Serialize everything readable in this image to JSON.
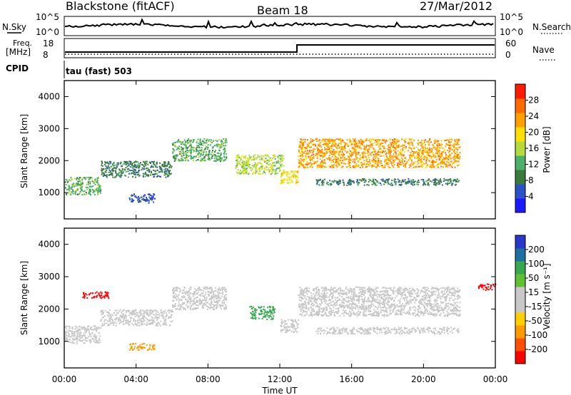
{
  "header": {
    "station": "Blackstone (fitACF)",
    "beam": "Beam 18",
    "date": "27/Mar/2012"
  },
  "strip_labels": {
    "nsky": "N.Sky",
    "nsky_ticks": [
      "10^5",
      "10^0"
    ],
    "nsearch": "N.Search",
    "nsearch_ticks": [
      "10^5",
      "10^0"
    ],
    "freq": "Freq.",
    "freq_unit": "[MHz]",
    "freq_ticks": [
      "18",
      "8"
    ],
    "nave": "Nave",
    "nave_ticks": [
      "60",
      "0"
    ],
    "cpid": "CPID",
    "cpid_value": "tau (fast) 503"
  },
  "colors": {
    "power": [
      "#1a1aff",
      "#2a52c8",
      "#3a7a3a",
      "#4caf6a",
      "#b4dc3c",
      "#ffe000",
      "#ffa000",
      "#ff6a00",
      "#ff1a00"
    ],
    "velocity": [
      "#ff0000",
      "#ff5000",
      "#ff9b00",
      "#ffd000",
      "#c8c8c8",
      "#c8c8c8",
      "#60c030",
      "#38a850",
      "#1e70a0",
      "#2838c8"
    ]
  },
  "chart_data": [
    {
      "type": "heatmap",
      "name": "power",
      "xlabel": "",
      "ylabel": "Slant Range [km]",
      "ylim": [
        180,
        4500
      ],
      "yticks": [
        "1000",
        "2000",
        "3000",
        "4000"
      ],
      "colorbar": {
        "label": "Power [dB]",
        "ticks": [
          "4",
          "8",
          "12",
          "16",
          "20",
          "24",
          "28"
        ]
      },
      "bands": [
        {
          "t0": 0.0,
          "t1": 2.0,
          "r0": 950,
          "r1": 1500,
          "level": 3
        },
        {
          "t0": 2.0,
          "t1": 6.0,
          "r0": 1500,
          "r1": 2000,
          "level": 2
        },
        {
          "t0": 3.6,
          "t1": 5.0,
          "r0": 700,
          "r1": 980,
          "level": 1
        },
        {
          "t0": 6.0,
          "t1": 9.0,
          "r0": 2000,
          "r1": 2700,
          "level": 3
        },
        {
          "t0": 9.5,
          "t1": 12.2,
          "r0": 1600,
          "r1": 2200,
          "level": 4
        },
        {
          "t0": 12.0,
          "t1": 13.0,
          "r0": 1300,
          "r1": 1700,
          "level": 5
        },
        {
          "t0": 13.0,
          "t1": 22.0,
          "r0": 1800,
          "r1": 2700,
          "level": 6
        },
        {
          "t0": 14.0,
          "t1": 22.0,
          "r0": 1250,
          "r1": 1450,
          "level": 2
        }
      ]
    },
    {
      "type": "heatmap",
      "name": "velocity",
      "xlabel": "Time UT",
      "ylabel": "Slant Range [km]",
      "ylim": [
        180,
        4500
      ],
      "yticks": [
        "1000",
        "2000",
        "3000",
        "4000"
      ],
      "xticks": [
        "00:00",
        "04:00",
        "08:00",
        "12:00",
        "16:00",
        "20:00",
        "00:00"
      ],
      "xlim_hours": [
        0,
        24
      ],
      "colorbar": {
        "label": "Velocity [m s⁻¹]",
        "ticks": [
          "-200",
          "-100",
          "-50",
          "-15",
          "15",
          "50",
          "100",
          "200"
        ]
      },
      "bands": [
        {
          "t0": 0.0,
          "t1": 2.0,
          "r0": 950,
          "r1": 1500,
          "level": 4
        },
        {
          "t0": 2.0,
          "t1": 6.0,
          "r0": 1500,
          "r1": 2000,
          "level": 4
        },
        {
          "t0": 3.6,
          "t1": 5.0,
          "r0": 750,
          "r1": 950,
          "level": 2
        },
        {
          "t0": 6.0,
          "t1": 9.0,
          "r0": 2000,
          "r1": 2700,
          "level": 4
        },
        {
          "t0": 10.3,
          "t1": 11.7,
          "r0": 1700,
          "r1": 2100,
          "level": 7
        },
        {
          "t0": 12.0,
          "t1": 13.0,
          "r0": 1300,
          "r1": 1700,
          "level": 4
        },
        {
          "t0": 13.0,
          "t1": 22.0,
          "r0": 1800,
          "r1": 2700,
          "level": 4
        },
        {
          "t0": 14.0,
          "t1": 22.0,
          "r0": 1250,
          "r1": 1450,
          "level": 4
        },
        {
          "t0": 1.0,
          "t1": 2.5,
          "r0": 2350,
          "r1": 2550,
          "level": 0
        },
        {
          "t0": 23.0,
          "t1": 24.0,
          "r0": 2600,
          "r1": 2800,
          "level": 0
        }
      ]
    }
  ]
}
